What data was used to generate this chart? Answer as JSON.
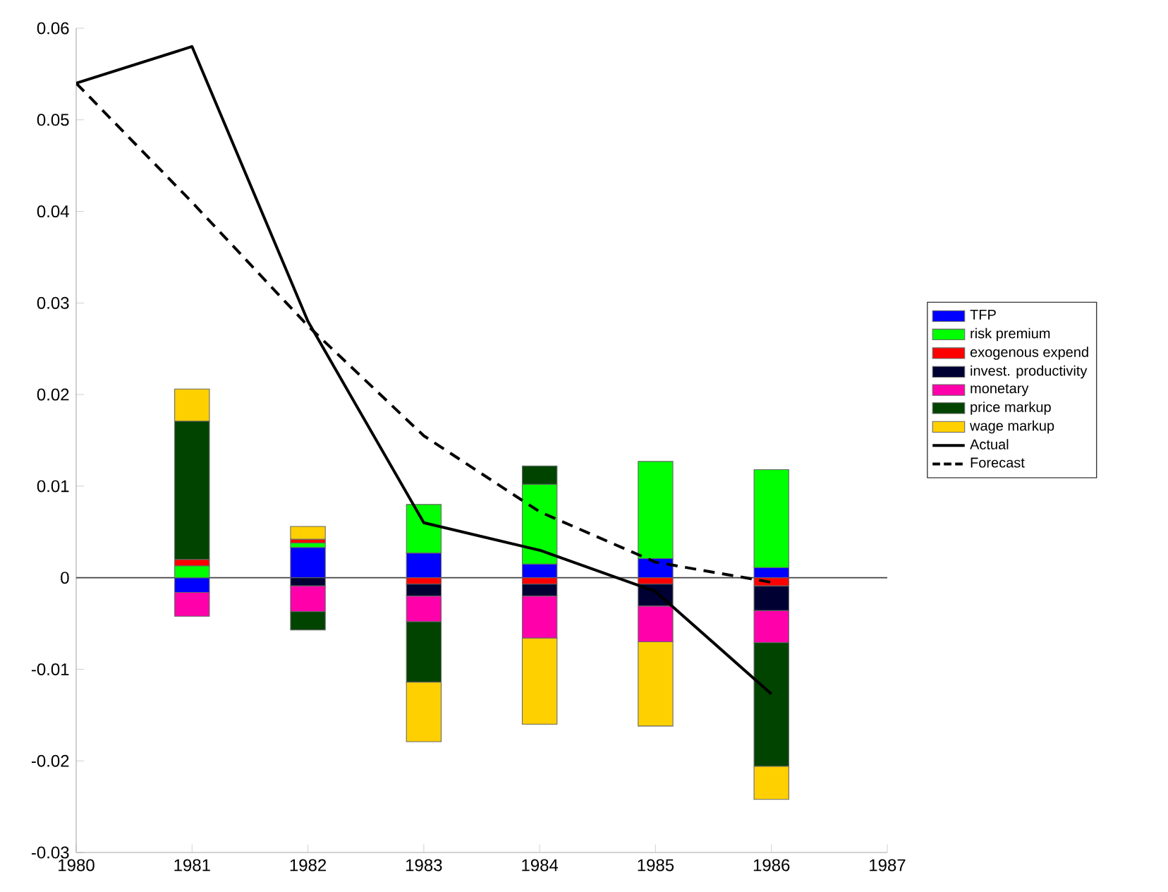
{
  "chart_data": {
    "type": "bar",
    "stacked": true,
    "x": [
      1981,
      1982,
      1983,
      1984,
      1985,
      1986
    ],
    "xlim": [
      1980,
      1987
    ],
    "xticks": [
      1980,
      1981,
      1982,
      1983,
      1984,
      1985,
      1986,
      1987
    ],
    "ylim": [
      -0.03,
      0.06
    ],
    "yticks": [
      -0.03,
      -0.02,
      -0.01,
      0,
      0.01,
      0.02,
      0.03,
      0.04,
      0.05,
      0.06
    ],
    "grid": false,
    "legend": "right",
    "marker": "none",
    "ref_lines": [
      {
        "axis": "y",
        "value": 0,
        "color": "#404040"
      }
    ],
    "series": [
      {
        "name": "TFP",
        "color": "#0000ff",
        "values": [
          -0.0016,
          0.0033,
          0.0027,
          0.0015,
          0.0021,
          0.0011
        ]
      },
      {
        "name": "risk premium",
        "color": "#00ff00",
        "values": [
          0.0013,
          0.0005,
          0.0053,
          0.0087,
          0.0106,
          0.0107
        ]
      },
      {
        "name": "exogenous expend",
        "color": "#ff0000",
        "values": [
          0.0007,
          0.0004,
          -0.0007,
          -0.0007,
          -0.0007,
          -0.0009
        ]
      },
      {
        "name": "invest. productivity",
        "color": "#000033",
        "values": [
          null,
          -0.0009,
          -0.0013,
          -0.0013,
          -0.0024,
          -0.0027
        ]
      },
      {
        "name": "monetary",
        "color": "#ff00aa",
        "values": [
          -0.0026,
          -0.0028,
          -0.0028,
          -0.0046,
          -0.0039,
          -0.0035
        ]
      },
      {
        "name": "price markup",
        "color": "#004400",
        "values": [
          0.0151,
          -0.002,
          -0.0066,
          0.002,
          0,
          -0.0135
        ]
      },
      {
        "name": "wage markup",
        "color": "#ffd000",
        "values": [
          0.0035,
          0.0014,
          -0.0065,
          -0.0094,
          -0.0092,
          -0.0036
        ]
      },
      {
        "name": "Actual",
        "type": "line",
        "color": "#000000",
        "line_style": "solid",
        "x": [
          1980,
          1981,
          1982,
          1983,
          1984,
          1985,
          1986
        ],
        "values": [
          0.054,
          0.058,
          0.028,
          0.006,
          0.003,
          -0.0015,
          -0.0127
        ]
      },
      {
        "name": "Forecast",
        "type": "line",
        "color": "#000000",
        "line_style": "dashed",
        "x": [
          1980,
          1981,
          1982,
          1983,
          1984,
          1985,
          1986
        ],
        "values": [
          0.054,
          0.041,
          0.0275,
          0.0155,
          0.0072,
          0.0017,
          -0.0005
        ]
      }
    ]
  }
}
